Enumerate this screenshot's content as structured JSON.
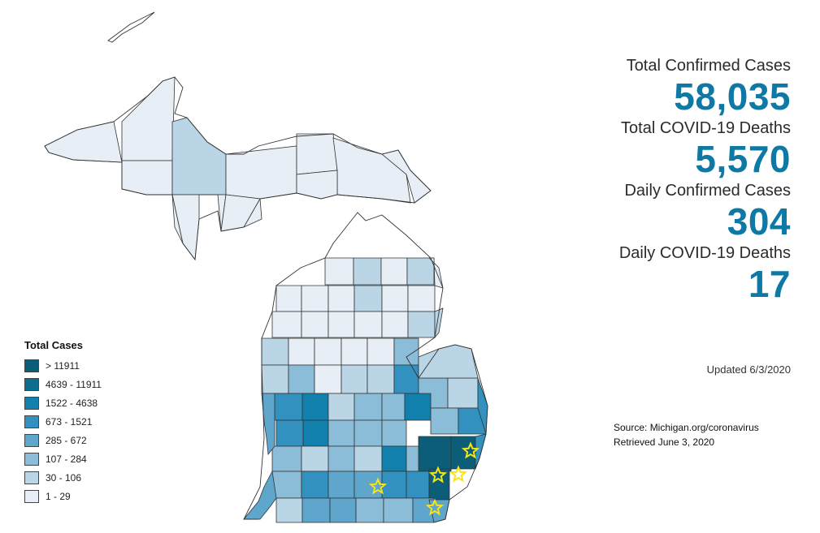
{
  "stats": [
    {
      "label": "Total Confirmed Cases",
      "value": "58,035"
    },
    {
      "label": "Total COVID-19 Deaths",
      "value": "5,570"
    },
    {
      "label": "Daily Confirmed Cases",
      "value": "304"
    },
    {
      "label": "Daily COVID-19 Deaths",
      "value": "17"
    }
  ],
  "updated": "Updated 6/3/2020",
  "source": {
    "line1": "Source: Michigan.org/coronavirus",
    "line2": "Retrieved June 3, 2020"
  },
  "legend": {
    "title": "Total Cases",
    "items": [
      {
        "label": "> 11911",
        "color": "#0c5e78"
      },
      {
        "label": "4639 - 11911",
        "color": "#0b6e8e"
      },
      {
        "label": "1522 - 4638",
        "color": "#1280ac"
      },
      {
        "label": "673 - 1521",
        "color": "#3391bf"
      },
      {
        "label": "285 - 672",
        "color": "#5fa6cc"
      },
      {
        "label": "107 - 284",
        "color": "#8bbcd8"
      },
      {
        "label": "30 - 106",
        "color": "#b9d5e6"
      },
      {
        "label": "1 - 29",
        "color": "#e7eef6"
      }
    ]
  },
  "map": {
    "star_color": "#f5e514",
    "border_color": "#333333"
  }
}
